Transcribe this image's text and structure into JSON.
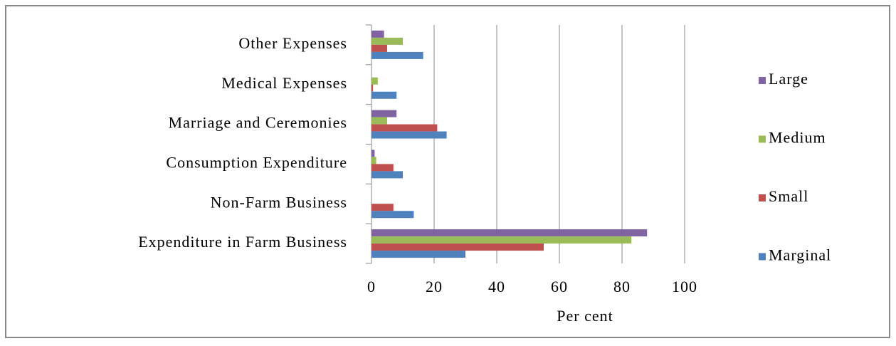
{
  "chart_data": {
    "type": "hbar",
    "categories": [
      "Other Expenses",
      "Medical Expenses",
      "Marriage and Ceremonies",
      "Consumption Expenditure",
      "Non-Farm Business",
      "Expenditure in Farm Business"
    ],
    "series": [
      {
        "name": "Large",
        "color": "#8064a2",
        "values": [
          4,
          0,
          8,
          1,
          0,
          88
        ]
      },
      {
        "name": "Medium",
        "color": "#9bbb59",
        "values": [
          10,
          2,
          5,
          1.5,
          0,
          83
        ]
      },
      {
        "name": "Small",
        "color": "#c0504d",
        "values": [
          5,
          0.5,
          21,
          7,
          7,
          55
        ]
      },
      {
        "name": "Marginal",
        "color": "#4f81bd",
        "values": [
          16.5,
          8,
          24,
          10,
          13.5,
          30
        ]
      }
    ],
    "x_label": "Per cent",
    "xlim": [
      0,
      100
    ],
    "xticks": [
      0,
      20,
      40,
      60,
      80,
      100
    ],
    "grid": true,
    "legend": "right"
  }
}
